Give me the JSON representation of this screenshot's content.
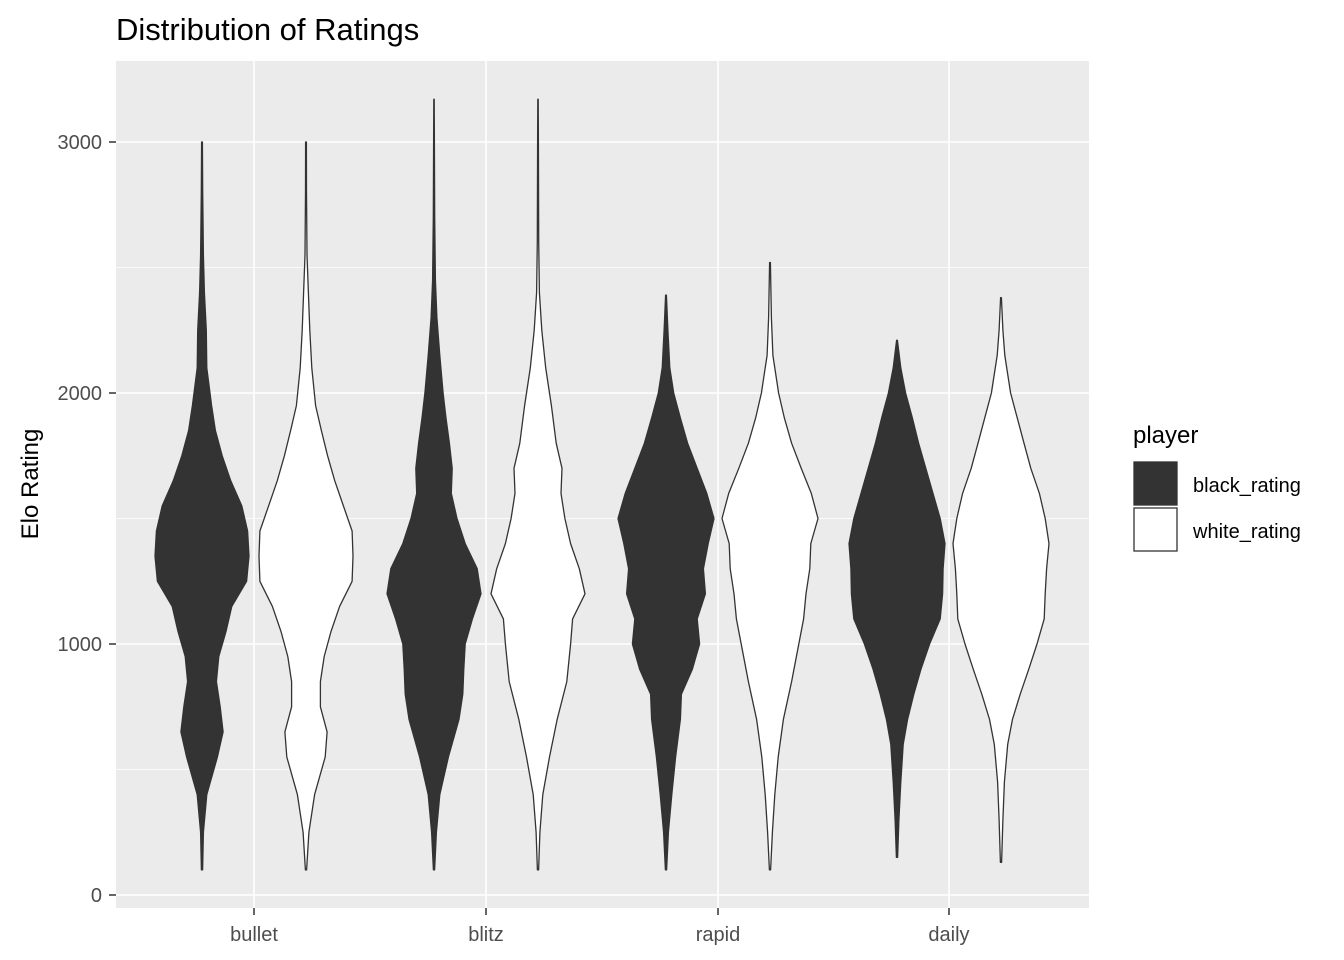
{
  "chart_data": {
    "type": "violin",
    "title": "Distribution of Ratings",
    "xlabel": "",
    "ylabel": "Elo Rating",
    "categories": [
      "bullet",
      "blitz",
      "rapid",
      "daily"
    ],
    "y_ticks": [
      "0",
      "1000",
      "2000",
      "3000"
    ],
    "ylim": [
      -50,
      3320
    ],
    "grid": true,
    "legend": {
      "title": "player",
      "position": "right",
      "entries": [
        {
          "label": "black_rating",
          "color": "#333333"
        },
        {
          "label": "white_rating",
          "color": "#ffffff"
        }
      ]
    },
    "series": [
      {
        "name": "black_rating",
        "color": "#333333",
        "violins": [
          {
            "category": "bullet",
            "min": 100,
            "max": 3000,
            "profile": [
              [
                100,
                0.012
              ],
              [
                250,
                0.03
              ],
              [
                400,
                0.1
              ],
              [
                550,
                0.32
              ],
              [
                650,
                0.44
              ],
              [
                750,
                0.38
              ],
              [
                850,
                0.3
              ],
              [
                950,
                0.35
              ],
              [
                1050,
                0.5
              ],
              [
                1150,
                0.62
              ],
              [
                1250,
                0.93
              ],
              [
                1350,
                0.98
              ],
              [
                1450,
                0.95
              ],
              [
                1550,
                0.83
              ],
              [
                1650,
                0.6
              ],
              [
                1750,
                0.42
              ],
              [
                1850,
                0.28
              ],
              [
                1950,
                0.2
              ],
              [
                2100,
                0.1
              ],
              [
                2250,
                0.09
              ],
              [
                2400,
                0.05
              ],
              [
                2550,
                0.03
              ],
              [
                2800,
                0.015
              ],
              [
                3000,
                0.008
              ]
            ]
          },
          {
            "category": "blitz",
            "min": 100,
            "max": 3170,
            "profile": [
              [
                100,
                0.012
              ],
              [
                250,
                0.05
              ],
              [
                400,
                0.12
              ],
              [
                550,
                0.3
              ],
              [
                700,
                0.52
              ],
              [
                800,
                0.6
              ],
              [
                900,
                0.62
              ],
              [
                1000,
                0.65
              ],
              [
                1100,
                0.8
              ],
              [
                1200,
                0.98
              ],
              [
                1300,
                0.9
              ],
              [
                1400,
                0.65
              ],
              [
                1500,
                0.48
              ],
              [
                1600,
                0.36
              ],
              [
                1700,
                0.38
              ],
              [
                1800,
                0.32
              ],
              [
                1900,
                0.25
              ],
              [
                2000,
                0.19
              ],
              [
                2150,
                0.12
              ],
              [
                2300,
                0.06
              ],
              [
                2450,
                0.03
              ],
              [
                2700,
                0.015
              ],
              [
                3000,
                0.008
              ],
              [
                3170,
                0.005
              ]
            ]
          },
          {
            "category": "rapid",
            "min": 100,
            "max": 2390,
            "profile": [
              [
                100,
                0.012
              ],
              [
                250,
                0.05
              ],
              [
                400,
                0.12
              ],
              [
                550,
                0.2
              ],
              [
                700,
                0.3
              ],
              [
                800,
                0.32
              ],
              [
                900,
                0.55
              ],
              [
                1000,
                0.7
              ],
              [
                1100,
                0.65
              ],
              [
                1200,
                0.82
              ],
              [
                1300,
                0.78
              ],
              [
                1400,
                0.88
              ],
              [
                1500,
                1.0
              ],
              [
                1600,
                0.85
              ],
              [
                1700,
                0.65
              ],
              [
                1800,
                0.45
              ],
              [
                1900,
                0.3
              ],
              [
                2000,
                0.16
              ],
              [
                2100,
                0.08
              ],
              [
                2250,
                0.04
              ],
              [
                2390,
                0.008
              ]
            ]
          },
          {
            "category": "daily",
            "min": 150,
            "max": 2210,
            "profile": [
              [
                150,
                0.012
              ],
              [
                300,
                0.04
              ],
              [
                450,
                0.08
              ],
              [
                600,
                0.13
              ],
              [
                700,
                0.22
              ],
              [
                800,
                0.35
              ],
              [
                900,
                0.5
              ],
              [
                1000,
                0.68
              ],
              [
                1100,
                0.9
              ],
              [
                1200,
                0.95
              ],
              [
                1300,
                0.96
              ],
              [
                1400,
                1.0
              ],
              [
                1500,
                0.9
              ],
              [
                1600,
                0.75
              ],
              [
                1700,
                0.6
              ],
              [
                1800,
                0.45
              ],
              [
                1900,
                0.32
              ],
              [
                2000,
                0.18
              ],
              [
                2100,
                0.08
              ],
              [
                2210,
                0.008
              ]
            ]
          }
        ]
      },
      {
        "name": "white_rating",
        "color": "#ffffff",
        "violins": [
          {
            "category": "bullet",
            "min": 100,
            "max": 3000,
            "profile": [
              [
                100,
                0.012
              ],
              [
                250,
                0.06
              ],
              [
                400,
                0.18
              ],
              [
                550,
                0.4
              ],
              [
                650,
                0.44
              ],
              [
                750,
                0.3
              ],
              [
                850,
                0.3
              ],
              [
                950,
                0.38
              ],
              [
                1050,
                0.52
              ],
              [
                1150,
                0.7
              ],
              [
                1250,
                0.96
              ],
              [
                1350,
                0.98
              ],
              [
                1450,
                0.96
              ],
              [
                1550,
                0.78
              ],
              [
                1650,
                0.6
              ],
              [
                1750,
                0.45
              ],
              [
                1850,
                0.32
              ],
              [
                1950,
                0.2
              ],
              [
                2100,
                0.12
              ],
              [
                2250,
                0.08
              ],
              [
                2400,
                0.05
              ],
              [
                2550,
                0.02
              ],
              [
                2800,
                0.01
              ],
              [
                3000,
                0.008
              ]
            ]
          },
          {
            "category": "blitz",
            "min": 100,
            "max": 3170,
            "profile": [
              [
                100,
                0.012
              ],
              [
                250,
                0.04
              ],
              [
                400,
                0.1
              ],
              [
                550,
                0.24
              ],
              [
                700,
                0.4
              ],
              [
                850,
                0.6
              ],
              [
                1000,
                0.68
              ],
              [
                1100,
                0.72
              ],
              [
                1200,
                0.98
              ],
              [
                1300,
                0.86
              ],
              [
                1400,
                0.68
              ],
              [
                1500,
                0.56
              ],
              [
                1600,
                0.48
              ],
              [
                1700,
                0.5
              ],
              [
                1800,
                0.38
              ],
              [
                1950,
                0.28
              ],
              [
                2100,
                0.16
              ],
              [
                2250,
                0.08
              ],
              [
                2400,
                0.03
              ],
              [
                2600,
                0.015
              ],
              [
                3000,
                0.008
              ],
              [
                3170,
                0.005
              ]
            ]
          },
          {
            "category": "rapid",
            "min": 100,
            "max": 2520,
            "profile": [
              [
                100,
                0.012
              ],
              [
                250,
                0.05
              ],
              [
                400,
                0.1
              ],
              [
                550,
                0.17
              ],
              [
                700,
                0.28
              ],
              [
                850,
                0.45
              ],
              [
                1000,
                0.6
              ],
              [
                1100,
                0.7
              ],
              [
                1200,
                0.75
              ],
              [
                1300,
                0.83
              ],
              [
                1400,
                0.85
              ],
              [
                1500,
                1.0
              ],
              [
                1600,
                0.86
              ],
              [
                1700,
                0.65
              ],
              [
                1800,
                0.45
              ],
              [
                1900,
                0.3
              ],
              [
                2000,
                0.18
              ],
              [
                2150,
                0.06
              ],
              [
                2300,
                0.03
              ],
              [
                2520,
                0.008
              ]
            ]
          },
          {
            "category": "daily",
            "min": 130,
            "max": 2380,
            "profile": [
              [
                130,
                0.012
              ],
              [
                300,
                0.04
              ],
              [
                450,
                0.07
              ],
              [
                600,
                0.14
              ],
              [
                700,
                0.24
              ],
              [
                800,
                0.4
              ],
              [
                900,
                0.58
              ],
              [
                1000,
                0.75
              ],
              [
                1100,
                0.9
              ],
              [
                1200,
                0.92
              ],
              [
                1300,
                0.95
              ],
              [
                1400,
                1.0
              ],
              [
                1500,
                0.92
              ],
              [
                1600,
                0.8
              ],
              [
                1700,
                0.62
              ],
              [
                1800,
                0.48
              ],
              [
                1900,
                0.34
              ],
              [
                2000,
                0.2
              ],
              [
                2150,
                0.08
              ],
              [
                2250,
                0.04
              ],
              [
                2380,
                0.008
              ]
            ]
          }
        ]
      }
    ]
  }
}
